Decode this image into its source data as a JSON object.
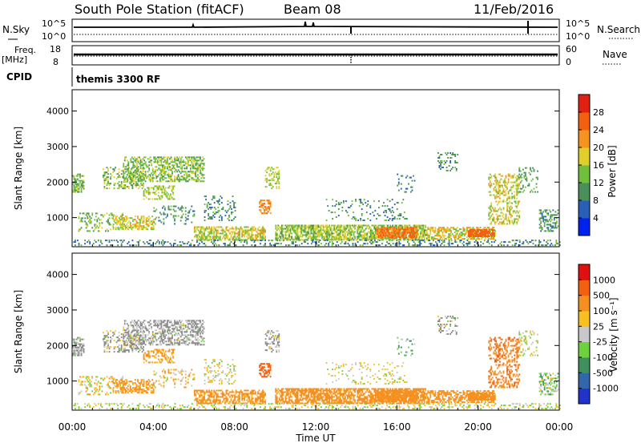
{
  "header": {
    "title": "South Pole Station (fitACF)",
    "beam": "Beam 08",
    "date": "11/Feb/2016"
  },
  "status_panels": {
    "nsky_label": "N.Sky",
    "nsky_ticks": [
      "10^5",
      "10^0"
    ],
    "nsearch_label": "N.Search",
    "nsearch_ticks": [
      "10^5",
      "10^0"
    ],
    "freq_label": "Freq.",
    "freq_unit": "[MHz]",
    "freq_ticks": [
      "18",
      "8"
    ],
    "nave_label": "Nave",
    "nave_ticks": [
      "60",
      "0"
    ],
    "cpid_label": "CPID",
    "cpid_value": "themis 3300 RF"
  },
  "chart_data": [
    {
      "type": "heatmap",
      "name": "power",
      "ylabel": "Slant Range [km]",
      "xlabel": "",
      "ylim": [
        180,
        4600
      ],
      "xlim_hours": [
        0,
        24
      ],
      "yticks": [
        1000,
        2000,
        3000,
        4000
      ],
      "colorbar": {
        "label": "Power [dB]",
        "ticks": [
          "4",
          "8",
          "12",
          "16",
          "20",
          "24",
          "28"
        ],
        "colors": [
          "#0022ee",
          "#2a5fb8",
          "#4a8f5a",
          "#6fbf3c",
          "#e0cf2a",
          "#f5951f",
          "#f26010",
          "#e02010"
        ]
      }
    },
    {
      "type": "heatmap",
      "name": "velocity",
      "ylabel": "Slant Range [km]",
      "xlabel": "Time UT",
      "ylim": [
        180,
        4600
      ],
      "xlim_hours": [
        0,
        24
      ],
      "yticks": [
        1000,
        2000,
        3000,
        4000
      ],
      "xticks": [
        "00:00",
        "04:00",
        "08:00",
        "12:00",
        "16:00",
        "20:00",
        "00:00"
      ],
      "colorbar": {
        "label": "Velocity [m s⁻¹]",
        "ticks": [
          "1000",
          "500",
          "100",
          "25",
          "-25",
          "-100",
          "-500",
          "-1000"
        ],
        "colors": [
          "#2233cc",
          "#3366aa",
          "#3f8f5f",
          "#6fd040",
          "#c8c8c8",
          "#f5c020",
          "#f59020",
          "#f26010",
          "#e01010"
        ]
      }
    }
  ],
  "colors": {
    "ground_scatter": "#888888",
    "axis": "#000000"
  }
}
